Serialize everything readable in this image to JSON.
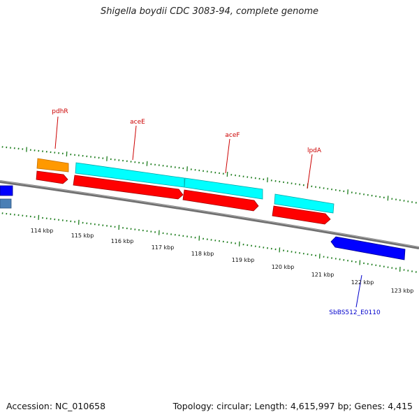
{
  "title": "Shigella boydii CDC 3083-94, complete genome",
  "footer": {
    "accession": "Accession: NC_010658",
    "stats": "Topology: circular; Length: 4,615,997 bp; Genes: 4,415"
  },
  "colors": {
    "backbone": "#808080",
    "ticks": "#1e7d1e",
    "cds_forward": "#ff0000",
    "gene_forward": "#00ffff",
    "gene_orange": "#ff9900",
    "cds_reverse": "#0000ff",
    "steelblue": "#4a7fb5",
    "label_red": "#cc0000",
    "label_blue": "#0000cc"
  },
  "scale_labels": [
    "114 kbp",
    "115 kbp",
    "116 kbp",
    "117 kbp",
    "118 kbp",
    "119 kbp",
    "120 kbp",
    "121 kbp",
    "122 kbp",
    "123 kbp"
  ],
  "gene_labels": [
    {
      "name": "pdhR",
      "color": "label_red"
    },
    {
      "name": "aceE",
      "color": "label_red"
    },
    {
      "name": "aceF",
      "color": "label_red"
    },
    {
      "name": "lpdA",
      "color": "label_red"
    },
    {
      "name": "SbBS512_E0110",
      "color": "label_blue"
    }
  ]
}
